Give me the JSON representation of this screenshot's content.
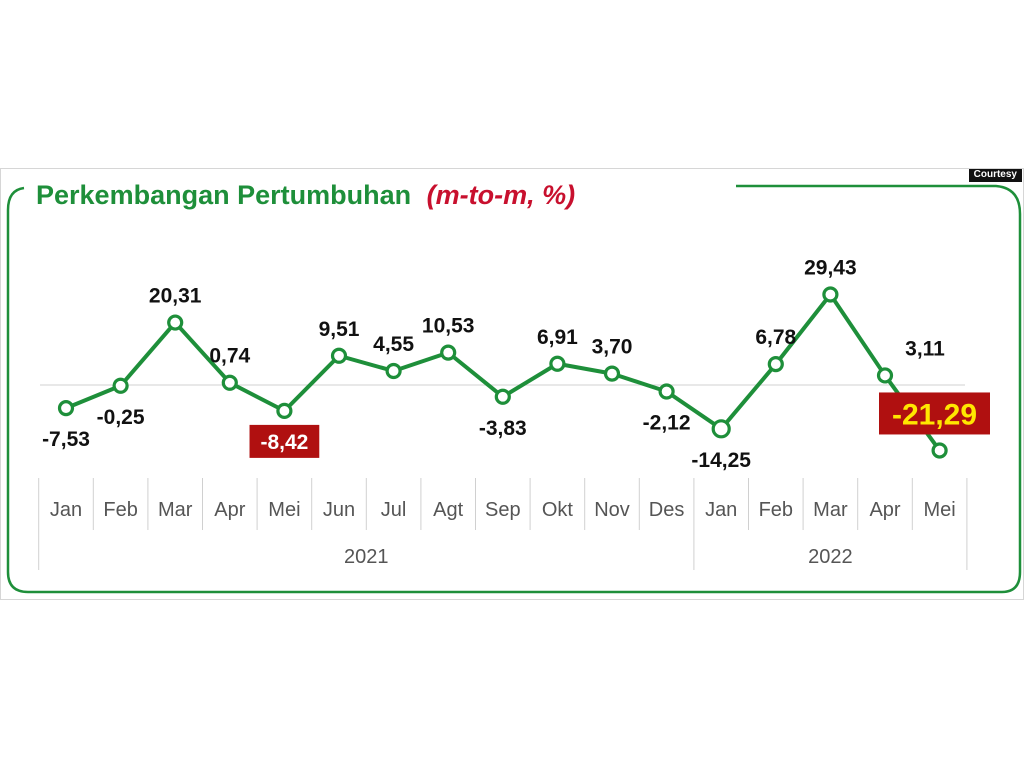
{
  "title": {
    "main": "Perkembangan Pertumbuhan",
    "unit": "(m-to-m, %)"
  },
  "credit": "Courtesy",
  "colors": {
    "line": "#1e8f3a",
    "title_green": "#1e8f3a",
    "title_red": "#c8102e",
    "highlight_bg": "#b01010",
    "highlight_text_last": "#ffe600",
    "highlight_text": "#ffffff",
    "axis_text": "#555555",
    "frame": "#cccccc"
  },
  "chart_data": {
    "type": "line",
    "title": "Perkembangan Pertumbuhan (m-to-m, %)",
    "categories": [
      "Jan",
      "Feb",
      "Mar",
      "Apr",
      "Mei",
      "Jun",
      "Jul",
      "Agt",
      "Sep",
      "Okt",
      "Nov",
      "Des",
      "Jan",
      "Feb",
      "Mar",
      "Apr",
      "Mei"
    ],
    "groups": [
      {
        "label": "2021",
        "count": 12
      },
      {
        "label": "2022",
        "count": 5
      }
    ],
    "values": [
      -7.53,
      -0.25,
      20.31,
      0.74,
      -8.42,
      9.51,
      4.55,
      10.53,
      -3.83,
      6.91,
      3.7,
      -2.12,
      -14.25,
      6.78,
      29.43,
      3.11,
      -21.29
    ],
    "labels": [
      "-7,53",
      "-0,25",
      "20,31",
      "0,74",
      "-8,42",
      "9,51",
      "4,55",
      "10,53",
      "-3,83",
      "6,91",
      "3,70",
      "-2,12",
      "-14,25",
      "6,78",
      "29,43",
      "3,11",
      "-21,29"
    ],
    "highlighted": [
      4,
      16
    ],
    "ylim": [
      -22,
      30
    ],
    "grid": false,
    "legend": "none"
  }
}
